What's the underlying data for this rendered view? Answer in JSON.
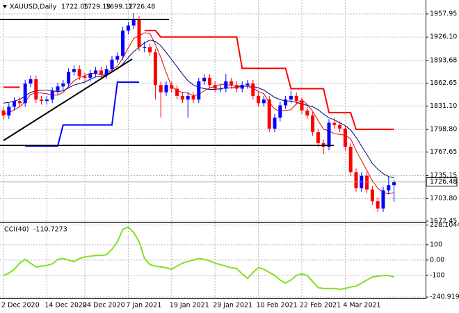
{
  "chart_data": [
    {
      "type": "candlestick",
      "title": "XAUUSD,Daily",
      "categories": [
        "2 Dec 2020",
        null,
        null,
        null,
        null,
        null,
        null,
        null,
        "14 Dec 2020",
        null,
        null,
        null,
        null,
        null,
        null,
        "24 Dec 2020",
        null,
        null,
        null,
        null,
        null,
        null,
        null,
        "7 Jan 2021",
        null,
        null,
        null,
        null,
        null,
        null,
        null,
        "19 Jan 2021",
        null,
        null,
        null,
        null,
        null,
        null,
        null,
        "29 Jan 2021",
        null,
        null,
        null,
        null,
        null,
        null,
        null,
        "10 Feb 2021",
        null,
        null,
        null,
        null,
        null,
        null,
        null,
        "22 Feb 2021",
        null,
        null,
        null,
        null,
        null,
        null,
        null,
        "4 Mar 2021",
        null,
        null,
        null,
        null,
        null,
        null,
        null,
        null,
        null
      ],
      "open": [
        1825,
        1818,
        1830,
        1838,
        1835,
        1862,
        1868,
        1840,
        1838,
        1840,
        1852,
        1858,
        1862,
        1878,
        1882,
        1872,
        1870,
        1876,
        1880,
        1874,
        1882,
        1895,
        1900,
        1935,
        1942,
        1950,
        1912,
        1912,
        1905,
        1860,
        1850,
        1860,
        1855,
        1845,
        1840,
        1845,
        1840,
        1865,
        1870,
        1860,
        1855,
        1855,
        1865,
        1860,
        1855,
        1860,
        1862,
        1845,
        1835,
        1840,
        1800,
        1815,
        1832,
        1840,
        1845,
        1838,
        1825,
        1818,
        1795,
        1780,
        1775,
        1808,
        1805,
        1800,
        1775,
        1740,
        1718,
        1735,
        1716,
        1700,
        1690,
        1715,
        1722.05
      ],
      "high": [
        1830,
        1835,
        1843,
        1843,
        1867,
        1873,
        1873,
        1845,
        1845,
        1857,
        1863,
        1867,
        1883,
        1887,
        1887,
        1877,
        1881,
        1885,
        1885,
        1887,
        1900,
        1905,
        1940,
        1947,
        1959,
        1955,
        1920,
        1917,
        1910,
        1865,
        1865,
        1865,
        1860,
        1850,
        1850,
        1850,
        1870,
        1875,
        1875,
        1865,
        1860,
        1875,
        1870,
        1865,
        1865,
        1867,
        1867,
        1850,
        1845,
        1845,
        1820,
        1837,
        1845,
        1852,
        1850,
        1843,
        1830,
        1823,
        1800,
        1785,
        1813,
        1815,
        1810,
        1805,
        1780,
        1745,
        1740,
        1740,
        1721,
        1705,
        1720,
        1733,
        1729.19
      ],
      "low": [
        1813,
        1813,
        1825,
        1830,
        1830,
        1857,
        1835,
        1833,
        1833,
        1835,
        1847,
        1853,
        1857,
        1873,
        1867,
        1865,
        1865,
        1871,
        1869,
        1869,
        1877,
        1890,
        1895,
        1930,
        1937,
        1907,
        1905,
        1900,
        1840,
        1815,
        1845,
        1850,
        1840,
        1835,
        1815,
        1835,
        1835,
        1860,
        1855,
        1850,
        1850,
        1850,
        1855,
        1850,
        1850,
        1855,
        1840,
        1830,
        1830,
        1795,
        1795,
        1810,
        1827,
        1835,
        1833,
        1820,
        1813,
        1790,
        1775,
        1765,
        1770,
        1800,
        1795,
        1770,
        1735,
        1713,
        1713,
        1711,
        1695,
        1685,
        1685,
        1710,
        1699.12
      ],
      "close": [
        1818,
        1830,
        1838,
        1835,
        1862,
        1868,
        1840,
        1838,
        1840,
        1852,
        1858,
        1862,
        1878,
        1882,
        1872,
        1870,
        1876,
        1880,
        1874,
        1882,
        1895,
        1900,
        1935,
        1942,
        1950,
        1912,
        1912,
        1905,
        1860,
        1850,
        1860,
        1855,
        1845,
        1840,
        1845,
        1840,
        1865,
        1870,
        1860,
        1855,
        1855,
        1865,
        1860,
        1855,
        1860,
        1862,
        1845,
        1835,
        1840,
        1800,
        1815,
        1832,
        1840,
        1845,
        1838,
        1825,
        1818,
        1795,
        1780,
        1775,
        1808,
        1805,
        1800,
        1775,
        1740,
        1718,
        1735,
        1716,
        1700,
        1690,
        1715,
        1722,
        1726.48
      ],
      "up_color": "#0000ff",
      "down_color": "#ff0000",
      "series": [
        {
          "color": "#e00000",
          "values": [
            1820,
            1822,
            1826,
            1830,
            1837,
            1847,
            1849,
            1849,
            1848,
            1846,
            1846,
            1850,
            1858,
            1866,
            1870,
            1873,
            1876,
            1876,
            1874,
            1876,
            1881,
            1886,
            1897,
            1911,
            1924,
            1928,
            1932,
            1931,
            1916,
            1898,
            1877,
            1858,
            1852,
            1850,
            1849,
            1845,
            1847,
            1852,
            1856,
            1858,
            1861,
            1861,
            1859,
            1858,
            1859,
            1858,
            1856,
            1851,
            1848,
            1836,
            1827,
            1824,
            1825,
            1826,
            1834,
            1840,
            1833,
            1824,
            1811,
            1799,
            1797,
            1793,
            1792,
            1791,
            1786,
            1770,
            1756,
            1742,
            1728,
            1718,
            1712,
            1710,
            1712
          ]
        },
        {
          "color": "#000080",
          "values": [
            1835,
            1836,
            1838,
            1840,
            1845,
            1850,
            1852,
            1853,
            1853,
            1852,
            1851,
            1852,
            1856,
            1860,
            1862,
            1864,
            1868,
            1871,
            1872,
            1874,
            1878,
            1882,
            1889,
            1898,
            1906,
            1912,
            1918,
            1922,
            1920,
            1914,
            1905,
            1895,
            1885,
            1875,
            1866,
            1860,
            1857,
            1855,
            1854,
            1854,
            1855,
            1856,
            1856,
            1857,
            1858,
            1859,
            1858,
            1856,
            1853,
            1848,
            1843,
            1840,
            1838,
            1838,
            1836,
            1834,
            1832,
            1830,
            1826,
            1820,
            1815,
            1812,
            1808,
            1804,
            1798,
            1788,
            1776,
            1764,
            1752,
            1744,
            1738,
            1734,
            1732
          ]
        },
        {
          "color": "#ff0000",
          "width": 2,
          "values": [
            1857,
            1857,
            1857,
            1857,
            null,
            null,
            null,
            null,
            null,
            null,
            null,
            null,
            null,
            null,
            null,
            null,
            null,
            null,
            null,
            null,
            null,
            null,
            null,
            null,
            null,
            null,
            1935,
            1935,
            1935,
            1926,
            1926,
            1926,
            1926,
            1926,
            1926,
            1926,
            1926,
            1926,
            1926,
            1926,
            1926,
            1926,
            1926,
            1926,
            1883,
            1883,
            1883,
            1883,
            1883,
            1883,
            1883,
            1883,
            1883,
            1855,
            1855,
            1855,
            1855,
            1855,
            1855,
            1855,
            1822,
            1822,
            1822,
            1822,
            1822,
            1799,
            1799,
            1799,
            1799,
            1799,
            1799,
            1799,
            1799
          ]
        },
        {
          "color": "#0000ff",
          "width": 2,
          "values": [
            null,
            null,
            null,
            null,
            1776,
            1776,
            1776,
            1776,
            1776,
            1776,
            1776,
            1805,
            1805,
            1805,
            1805,
            1805,
            1805,
            1805,
            1805,
            1805,
            1805,
            1864,
            1864,
            1864,
            1864,
            1864,
            null,
            null,
            null,
            null,
            null,
            null,
            null,
            null,
            null,
            null,
            null,
            null,
            null,
            null,
            null,
            null,
            null,
            null,
            null,
            null,
            null,
            null,
            null,
            null,
            null,
            null,
            null,
            null,
            null,
            null,
            null,
            null,
            null,
            null,
            null,
            null,
            null,
            null,
            null,
            null,
            null,
            null,
            null,
            null,
            null,
            null,
            null
          ]
        }
      ],
      "ylim": [
        1672.45,
        1977.1
      ],
      "yticks": [
        1957.95,
        {
          "value": 1926.1,
          "label": "1926.10"
        },
        1893.68,
        1862.65,
        {
          "value": 1831.1,
          "label": "1831.10"
        },
        {
          "value": 1798.8,
          "label": "1798.80"
        },
        1767.65,
        1735.15,
        {
          "value": 1703.8,
          "label": "1703.80"
        },
        1672.45
      ],
      "grid": true
    },
    {
      "type": "line",
      "title": "CCI(40)",
      "color": "#7ee21e",
      "values": [
        -100,
        -85,
        -60,
        -20,
        5,
        -20,
        -45,
        -40,
        -35,
        -25,
        5,
        10,
        0,
        -10,
        10,
        20,
        25,
        30,
        30,
        35,
        70,
        120,
        200,
        215,
        180,
        120,
        10,
        -30,
        -40,
        -45,
        -50,
        -60,
        -40,
        -20,
        -10,
        0,
        10,
        5,
        -5,
        -20,
        -30,
        -40,
        -50,
        -55,
        -90,
        -120,
        -80,
        -50,
        -60,
        -80,
        -100,
        -130,
        -150,
        -130,
        -100,
        -90,
        -100,
        -140,
        -180,
        -185,
        -185,
        -185,
        -190,
        -185,
        -175,
        -170,
        -150,
        -130,
        -110,
        -105,
        -100,
        -100,
        -110.7273
      ],
      "ylim": [
        -245,
        235
      ],
      "yticks": [
        228.1044,
        100,
        {
          "value": 0,
          "label": "0.00"
        },
        -100,
        -240.9193
      ],
      "grid": true
    }
  ]
}
